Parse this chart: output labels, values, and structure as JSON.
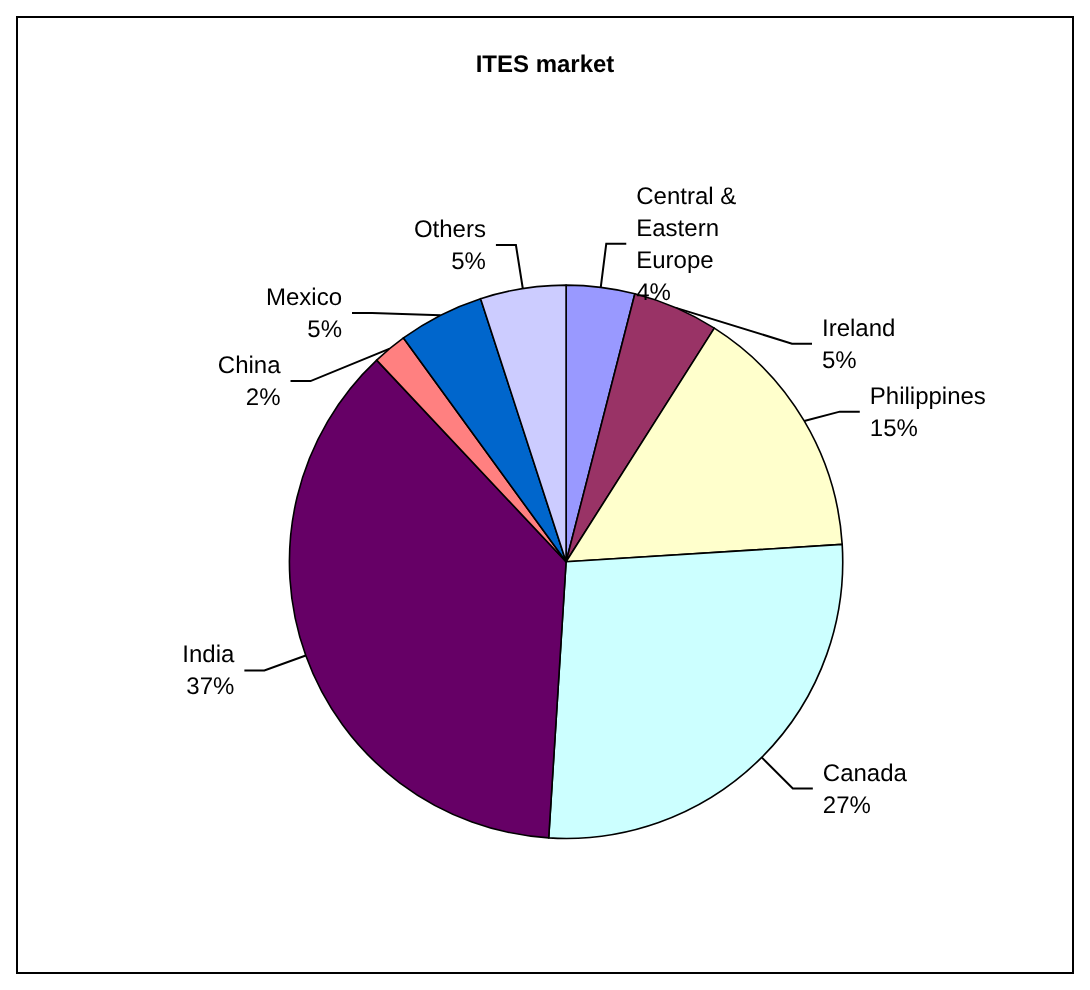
{
  "chart_data": {
    "type": "pie",
    "title": "ITES market",
    "categories": [
      "Central & Eastern Europe",
      "Ireland",
      "Philippines",
      "Canada",
      "India",
      "China",
      "Mexico",
      "Others"
    ],
    "values": [
      4,
      5,
      15,
      27,
      37,
      2,
      5,
      5
    ],
    "value_labels": [
      "4%",
      "5%",
      "15%",
      "27%",
      "37%",
      "2%",
      "5%",
      "5%"
    ],
    "colors": [
      "#9999ff",
      "#993366",
      "#ffffcc",
      "#ccffff",
      "#660066",
      "#ff8080",
      "#0066cc",
      "#ccccff"
    ],
    "legend": false
  }
}
